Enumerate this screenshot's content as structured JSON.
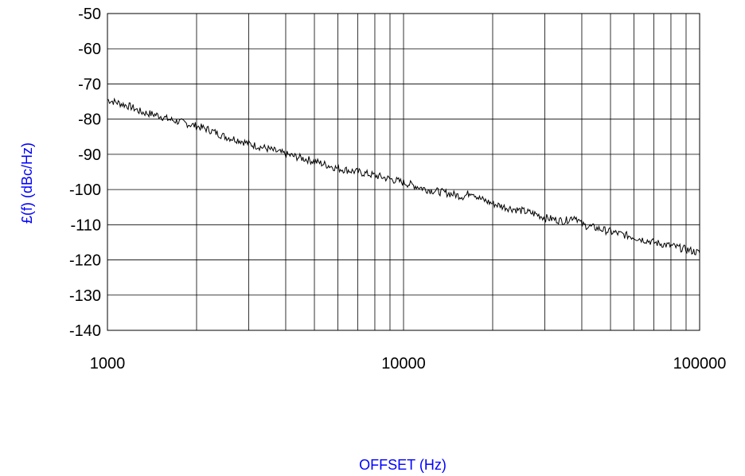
{
  "chart_data": {
    "type": "line",
    "title": "",
    "xlabel": "OFFSET (Hz)",
    "ylabel": "£(f) (dBc/Hz)",
    "xscale": "log",
    "xlim": [
      1000,
      100000
    ],
    "ylim": [
      -140,
      -50
    ],
    "x_ticks": [
      1000,
      10000,
      100000
    ],
    "x_tick_labels": [
      "1000",
      "10000",
      "100000"
    ],
    "y_ticks": [
      -50,
      -60,
      -70,
      -80,
      -90,
      -100,
      -110,
      -120,
      -130,
      -140
    ],
    "y_tick_labels": [
      "-50",
      "-60",
      "-70",
      "-80",
      "-90",
      "-100",
      "-110",
      "-120",
      "-130",
      "-140"
    ],
    "grid": true,
    "legend": "none",
    "label_color": "#0000ff",
    "line_color": "#000000",
    "series": [
      {
        "x": [
          1000,
          1100,
          1200,
          1300,
          1400,
          1500,
          1600,
          1800,
          2000,
          2200,
          2500,
          2800,
          3000,
          3500,
          4000,
          4500,
          5000,
          5500,
          6000,
          7000,
          8000,
          9000,
          10000,
          11000,
          12000,
          14000,
          16000,
          17000,
          18000,
          20000,
          22000,
          25000,
          28000,
          30000,
          35000,
          38000,
          40000,
          45000,
          50000,
          60000,
          70000,
          80000,
          90000,
          100000
        ],
        "y": [
          -74.5,
          -75.5,
          -76.5,
          -78,
          -78.5,
          -79,
          -80,
          -81,
          -82,
          -83,
          -85,
          -86,
          -87,
          -88.5,
          -90,
          -91,
          -92,
          -93,
          -94,
          -95,
          -96,
          -97,
          -98,
          -99,
          -100,
          -101,
          -102,
          -100.5,
          -102.5,
          -104,
          -105,
          -106,
          -107,
          -108,
          -109,
          -107.5,
          -110,
          -111,
          -112,
          -113.5,
          -115,
          -116,
          -117,
          -118
        ]
      }
    ]
  }
}
